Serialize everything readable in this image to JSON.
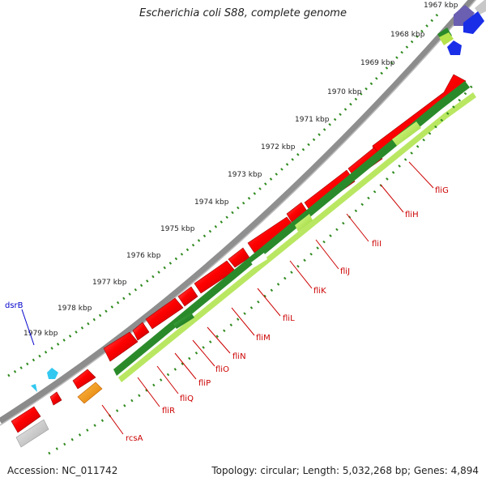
{
  "title": "Escherichia coli S88, complete genome",
  "accession": "Accession: NC_011742",
  "summary": "Topology: circular; Length: 5,032,268 bp; Genes: 4,894",
  "ruler": {
    "ticks": [
      "1967 kbp",
      "1968 kbp",
      "1969 kbp",
      "1970 kbp",
      "1971 kbp",
      "1972 kbp",
      "1973 kbp",
      "1974 kbp",
      "1975 kbp",
      "1976 kbp",
      "1977 kbp",
      "1978 kbp",
      "1979 kbp"
    ]
  },
  "genes": {
    "forward_labels": [
      "dsrB"
    ],
    "reverse_labels": [
      "fliG",
      "fliH",
      "fliI",
      "fliJ",
      "fliK",
      "fliL",
      "fliM",
      "fliN",
      "fliO",
      "fliP",
      "fliQ",
      "fliR",
      "rcsA"
    ]
  },
  "colors": {
    "cds": "#ff0000",
    "rna": "#ff8c00",
    "orthology_dark": "#2a8a2a",
    "orthology_light": "#b6e24a",
    "gray_feature": "#c8c8c8",
    "blue_feature": "#1a2ee8",
    "purple_feature": "#6a5fb0",
    "cyan_feature": "#33c8f0",
    "forward_label_color": "#0000cc",
    "reverse_label_color": "#cc0000",
    "tick_color": "#2f8a1f",
    "backbone": "#8a8a8a"
  }
}
